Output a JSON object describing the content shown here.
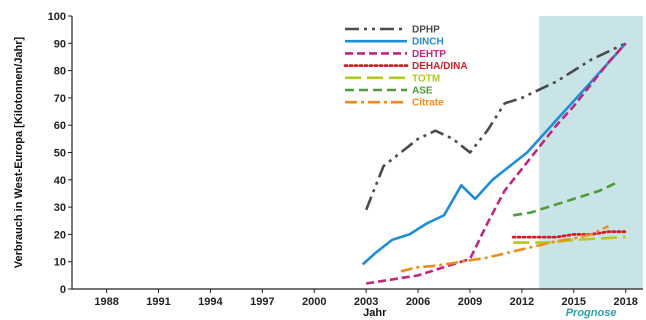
{
  "chart_data": {
    "type": "line",
    "xlabel": "Jahr",
    "ylabel": "Verbrauch in West-Europa [Kilotonnen/Jahr]",
    "xlim": [
      1986,
      2019
    ],
    "ylim": [
      0,
      100
    ],
    "x_ticks": [
      1988,
      1991,
      1994,
      1997,
      2000,
      2003,
      2006,
      2009,
      2012,
      2015,
      2018
    ],
    "y_ticks": [
      0,
      10,
      20,
      30,
      40,
      50,
      60,
      70,
      80,
      90,
      100
    ],
    "grid": false,
    "legend_position": "top-center",
    "forecast": {
      "from": 2013,
      "to": 2019,
      "label": "Prognose",
      "color": "#c9e4e6",
      "label_color": "#2a9fa6"
    },
    "series": [
      {
        "name": "DPHP",
        "color": "#4a4a4a",
        "dash": "dashdotdot",
        "x": [
          2003,
          2004,
          2005,
          2006,
          2007,
          2008,
          2009,
          2010,
          2011,
          2012,
          2013,
          2014,
          2015,
          2016,
          2017,
          2018
        ],
        "y": [
          29,
          45,
          50,
          55,
          58,
          55,
          50,
          58,
          68,
          70,
          73,
          76,
          80,
          84,
          87,
          90
        ]
      },
      {
        "name": "DINCH",
        "color": "#1f8ed6",
        "dash": "solid",
        "x": [
          2002.8,
          2003.5,
          2004.5,
          2005.5,
          2006.5,
          2007.5,
          2008.5,
          2009.3,
          2010.3,
          2011.3,
          2012.3,
          2013.3,
          2014.3,
          2015.3,
          2016.3,
          2017.3,
          2018
        ],
        "y": [
          9,
          13,
          18,
          20,
          24,
          27,
          38,
          33,
          40,
          45,
          50,
          57,
          64,
          71,
          78,
          85,
          90
        ]
      },
      {
        "name": "DEHTP",
        "color": "#c0267f",
        "dash": "dash",
        "x": [
          2003,
          2004,
          2005,
          2006,
          2007,
          2008,
          2009,
          2010,
          2011,
          2012,
          2013,
          2014,
          2015,
          2016,
          2017,
          2018
        ],
        "y": [
          2,
          3,
          4,
          5,
          7,
          9,
          11,
          24,
          36,
          44,
          52,
          60,
          67,
          75,
          83,
          90
        ]
      },
      {
        "name": "DEHA/DINA",
        "color": "#d01f2a",
        "dash": "dot",
        "x": [
          2011.5,
          2013,
          2014,
          2015,
          2016,
          2017,
          2018
        ],
        "y": [
          19,
          19,
          19,
          20,
          20,
          21,
          21
        ]
      },
      {
        "name": "TOTM",
        "color": "#b5c91c",
        "dash": "longdash",
        "x": [
          2011.5,
          2012.5,
          2013.5,
          2015,
          2016.5,
          2018
        ],
        "y": [
          17,
          17,
          17,
          18,
          18.5,
          19
        ]
      },
      {
        "name": "ASE",
        "color": "#4a9d38",
        "dash": "mediumdash",
        "x": [
          2011.5,
          2012.5,
          2013.5,
          2014.5,
          2015.5,
          2016.5,
          2017.5
        ],
        "y": [
          27,
          28,
          30,
          32,
          34,
          36,
          39
        ]
      },
      {
        "name": "Citrate",
        "color": "#ee8c1e",
        "dash": "dashdot",
        "x": [
          2005,
          2006,
          2007,
          2008,
          2009,
          2010,
          2011,
          2012,
          2013,
          2014,
          2015,
          2016,
          2017
        ],
        "y": [
          6.5,
          8,
          8.5,
          9.5,
          10.5,
          11.5,
          13,
          14.5,
          16,
          17.5,
          18.5,
          20,
          23
        ]
      }
    ]
  }
}
